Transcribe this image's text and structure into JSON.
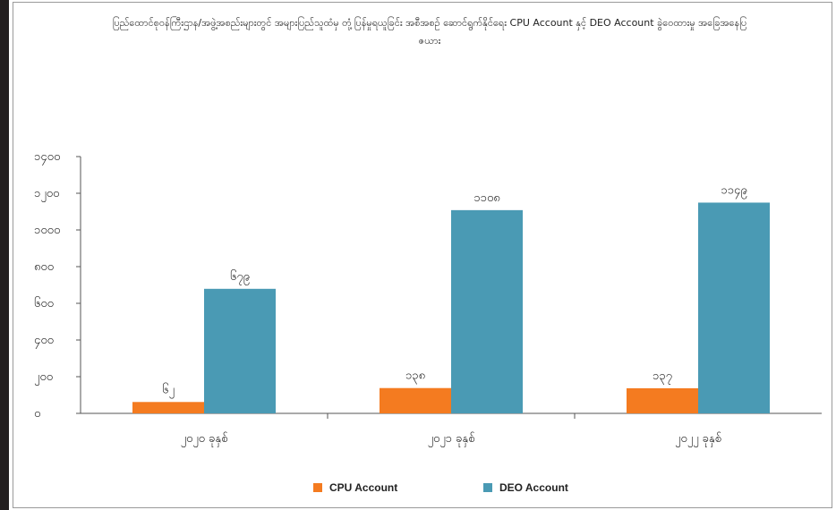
{
  "chart_data": {
    "type": "bar",
    "title": "ပြည်ထောင်စုဝန်ကြီးဌာန/အဖွဲ့အစည်းများတွင် အများပြည်သူထံမှ တုံ့ပြန်မှုရယူခြင်း အစီအစဉ် ဆောင်ရွက်နိုင်ရေး CPU Account နှင့် DEO Account ခွဲဝေထားမှု အခြေအနေပြဇယား",
    "categories": [
      "၂၀၂၀ ခုနှစ်",
      "၂၀၂၁ ခုနှစ်",
      "၂၀၂၂ ခုနှစ်"
    ],
    "series": [
      {
        "name": "CPU Account",
        "color": "#f47b20",
        "values": [
          62,
          138,
          137
        ],
        "labels": [
          "၆၂",
          "၁၃၈",
          "၁၃၇"
        ]
      },
      {
        "name": "DEO Account",
        "color": "#4a9ab4",
        "values": [
          679,
          1108,
          1149
        ],
        "labels": [
          "၆၇၉",
          "၁၁၀၈",
          "၁၁၄၉"
        ]
      }
    ],
    "ylim": [
      0,
      1400
    ],
    "yticks": [
      0,
      200,
      400,
      600,
      800,
      1000,
      1200,
      1400
    ],
    "ytick_labels": [
      "၀",
      "၂၀၀",
      "၄၀၀",
      "၆၀၀",
      "၈၀၀",
      "၁၀၀၀",
      "၁၂၀၀",
      "၁၄၀၀"
    ],
    "legend_position": "bottom",
    "grid": false
  }
}
